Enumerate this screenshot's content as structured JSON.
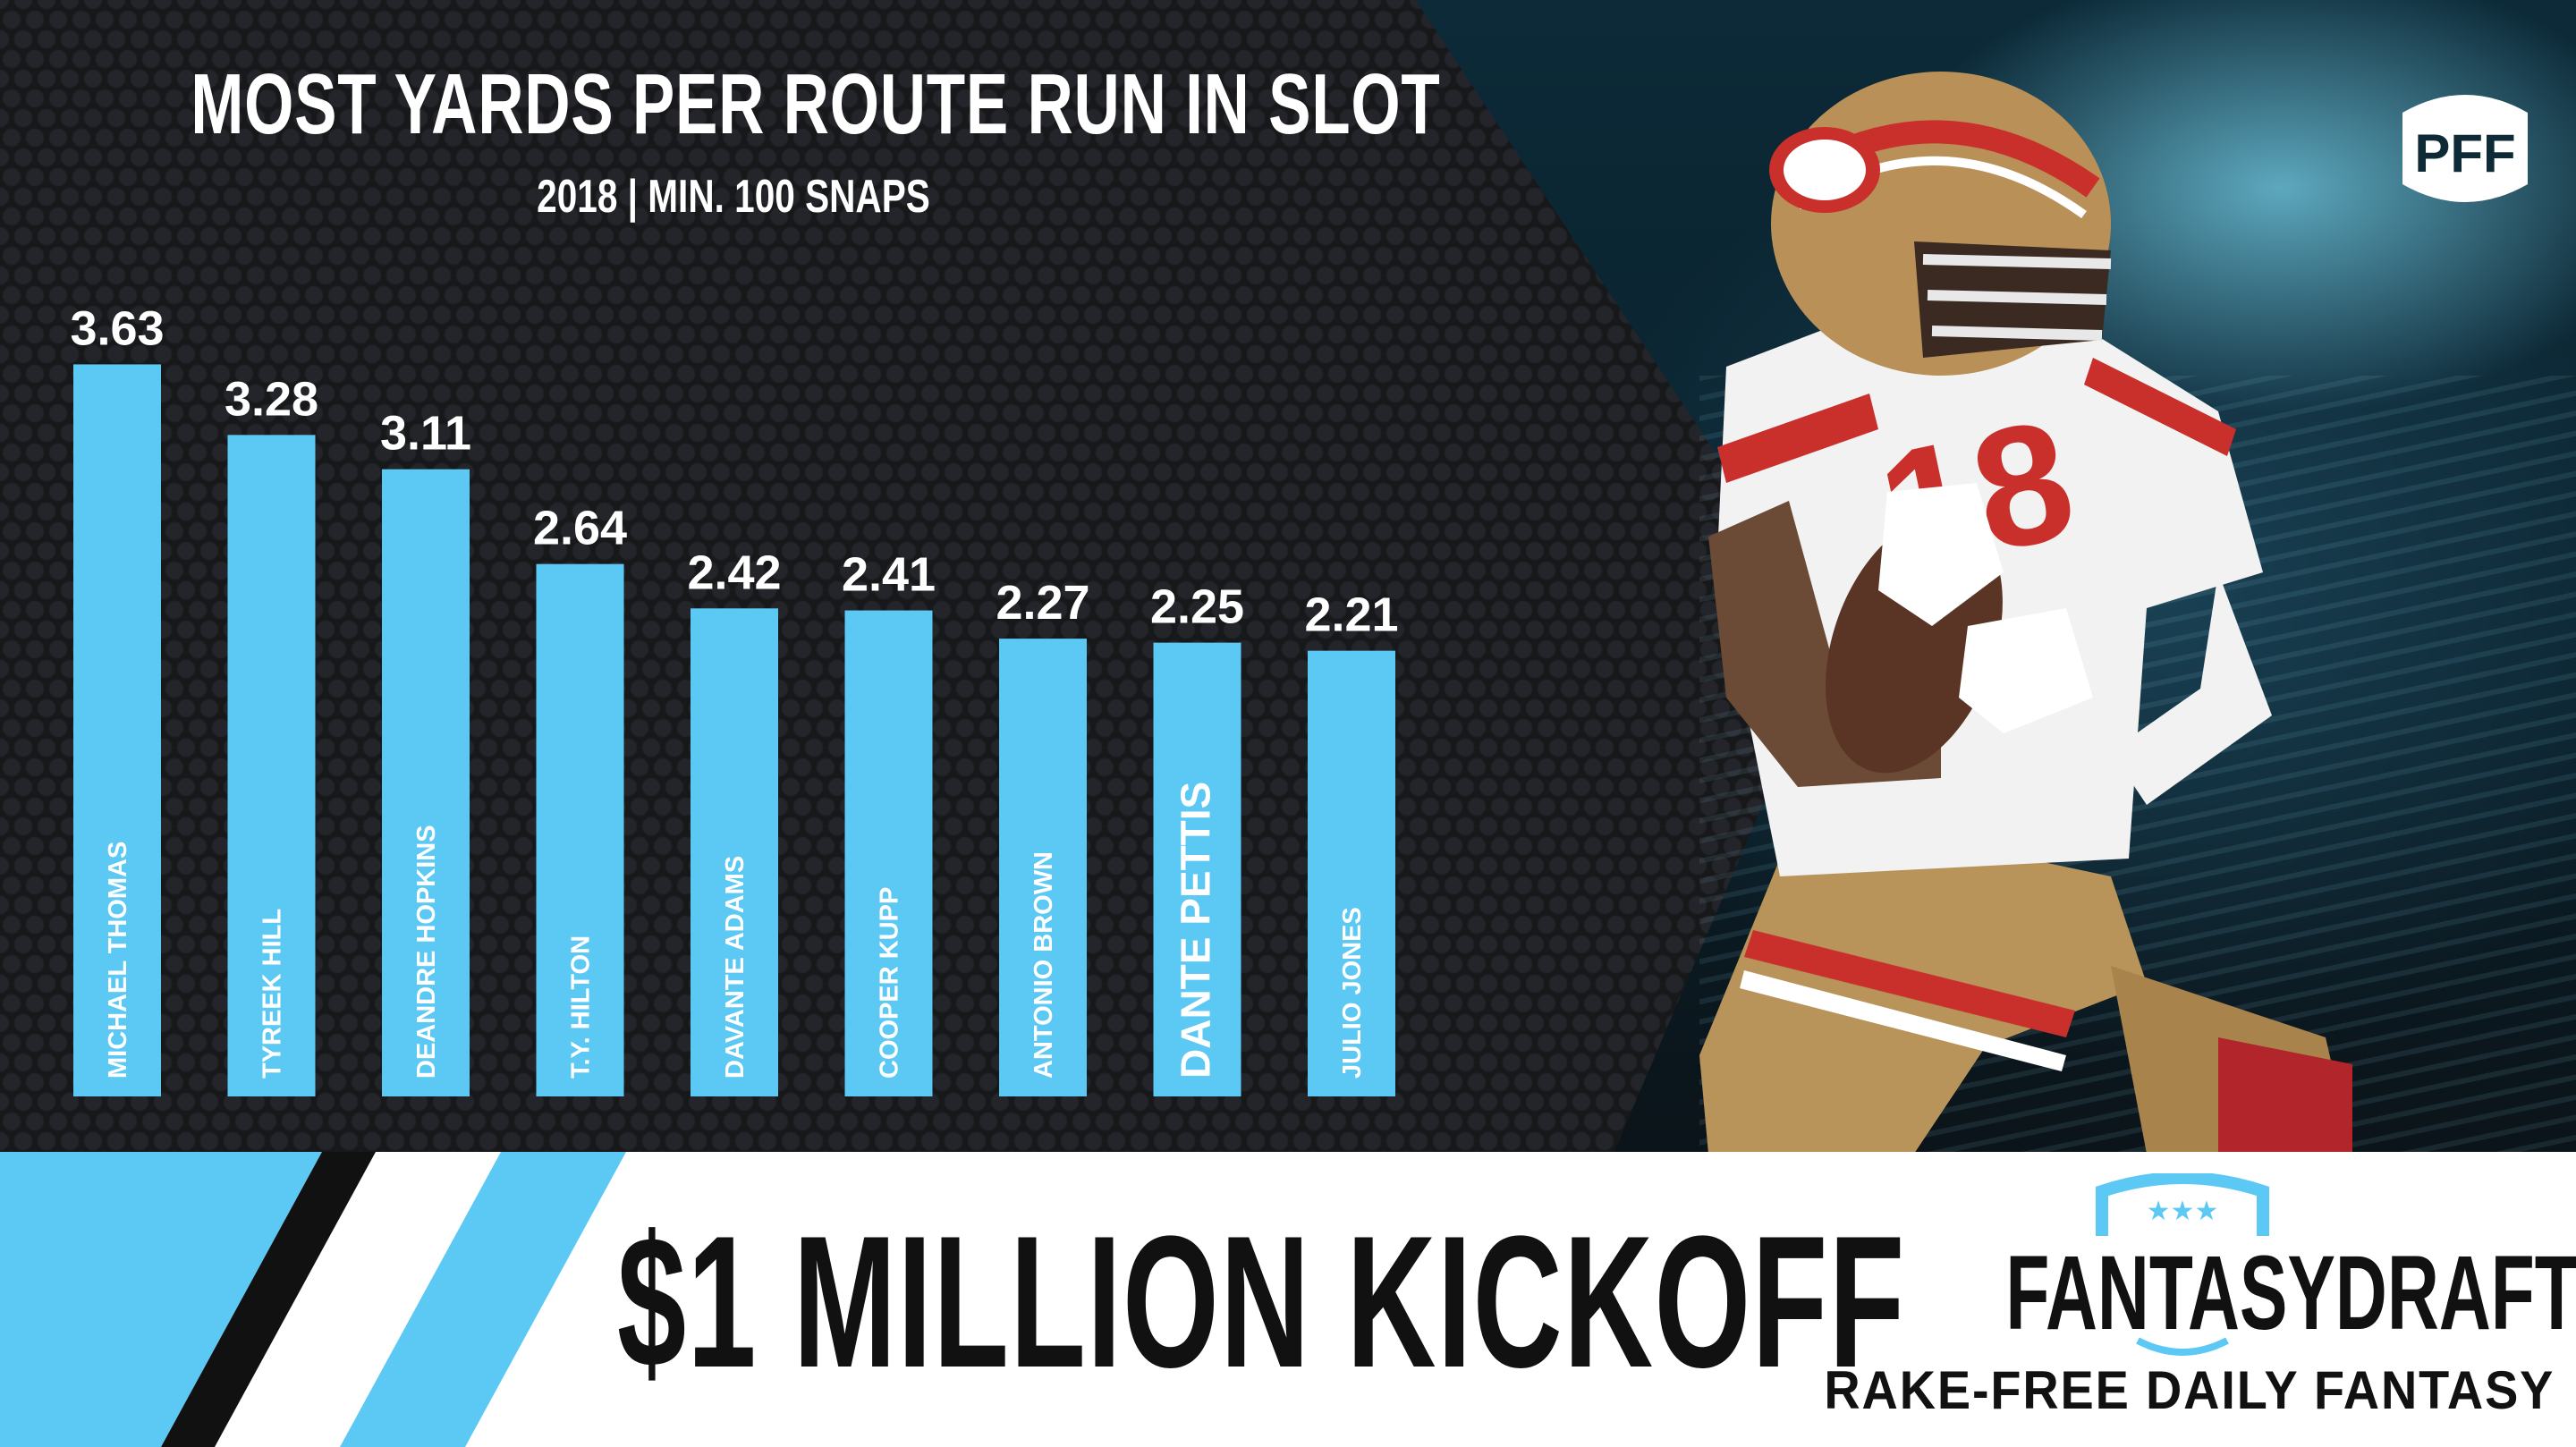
{
  "chart_data": {
    "type": "bar",
    "title": "MOST YARDS PER ROUTE RUN IN SLOT",
    "subtitle": "2018 | MIN. 100 SNAPS",
    "categories": [
      "MICHAEL THOMAS",
      "TYREEK HILL",
      "DEANDRE HOPKINS",
      "T.Y. HILTON",
      "DAVANTE ADAMS",
      "COOPER KUPP",
      "ANTONIO BROWN",
      "DANTE PETTIS",
      "JULIO JONES"
    ],
    "values": [
      3.63,
      3.28,
      3.11,
      2.64,
      2.42,
      2.41,
      2.27,
      2.25,
      2.21
    ],
    "value_labels": [
      "3.63",
      "3.28",
      "3.11",
      "2.64",
      "2.42",
      "2.41",
      "2.27",
      "2.25",
      "2.21"
    ],
    "highlight": "DANTE PETTIS",
    "bar_color": "#5cc9f5",
    "label_color": "#ffffff",
    "grid": false,
    "legend": "none"
  },
  "brand": {
    "pff_logo": "PFF",
    "banner_text": "$1 MILLION KICKOFF",
    "sponsor_name": "FANTASYDRAFT",
    "sponsor_tagline": "RAKE-FREE DAILY FANTASY",
    "accent_color": "#5cc9f5"
  }
}
